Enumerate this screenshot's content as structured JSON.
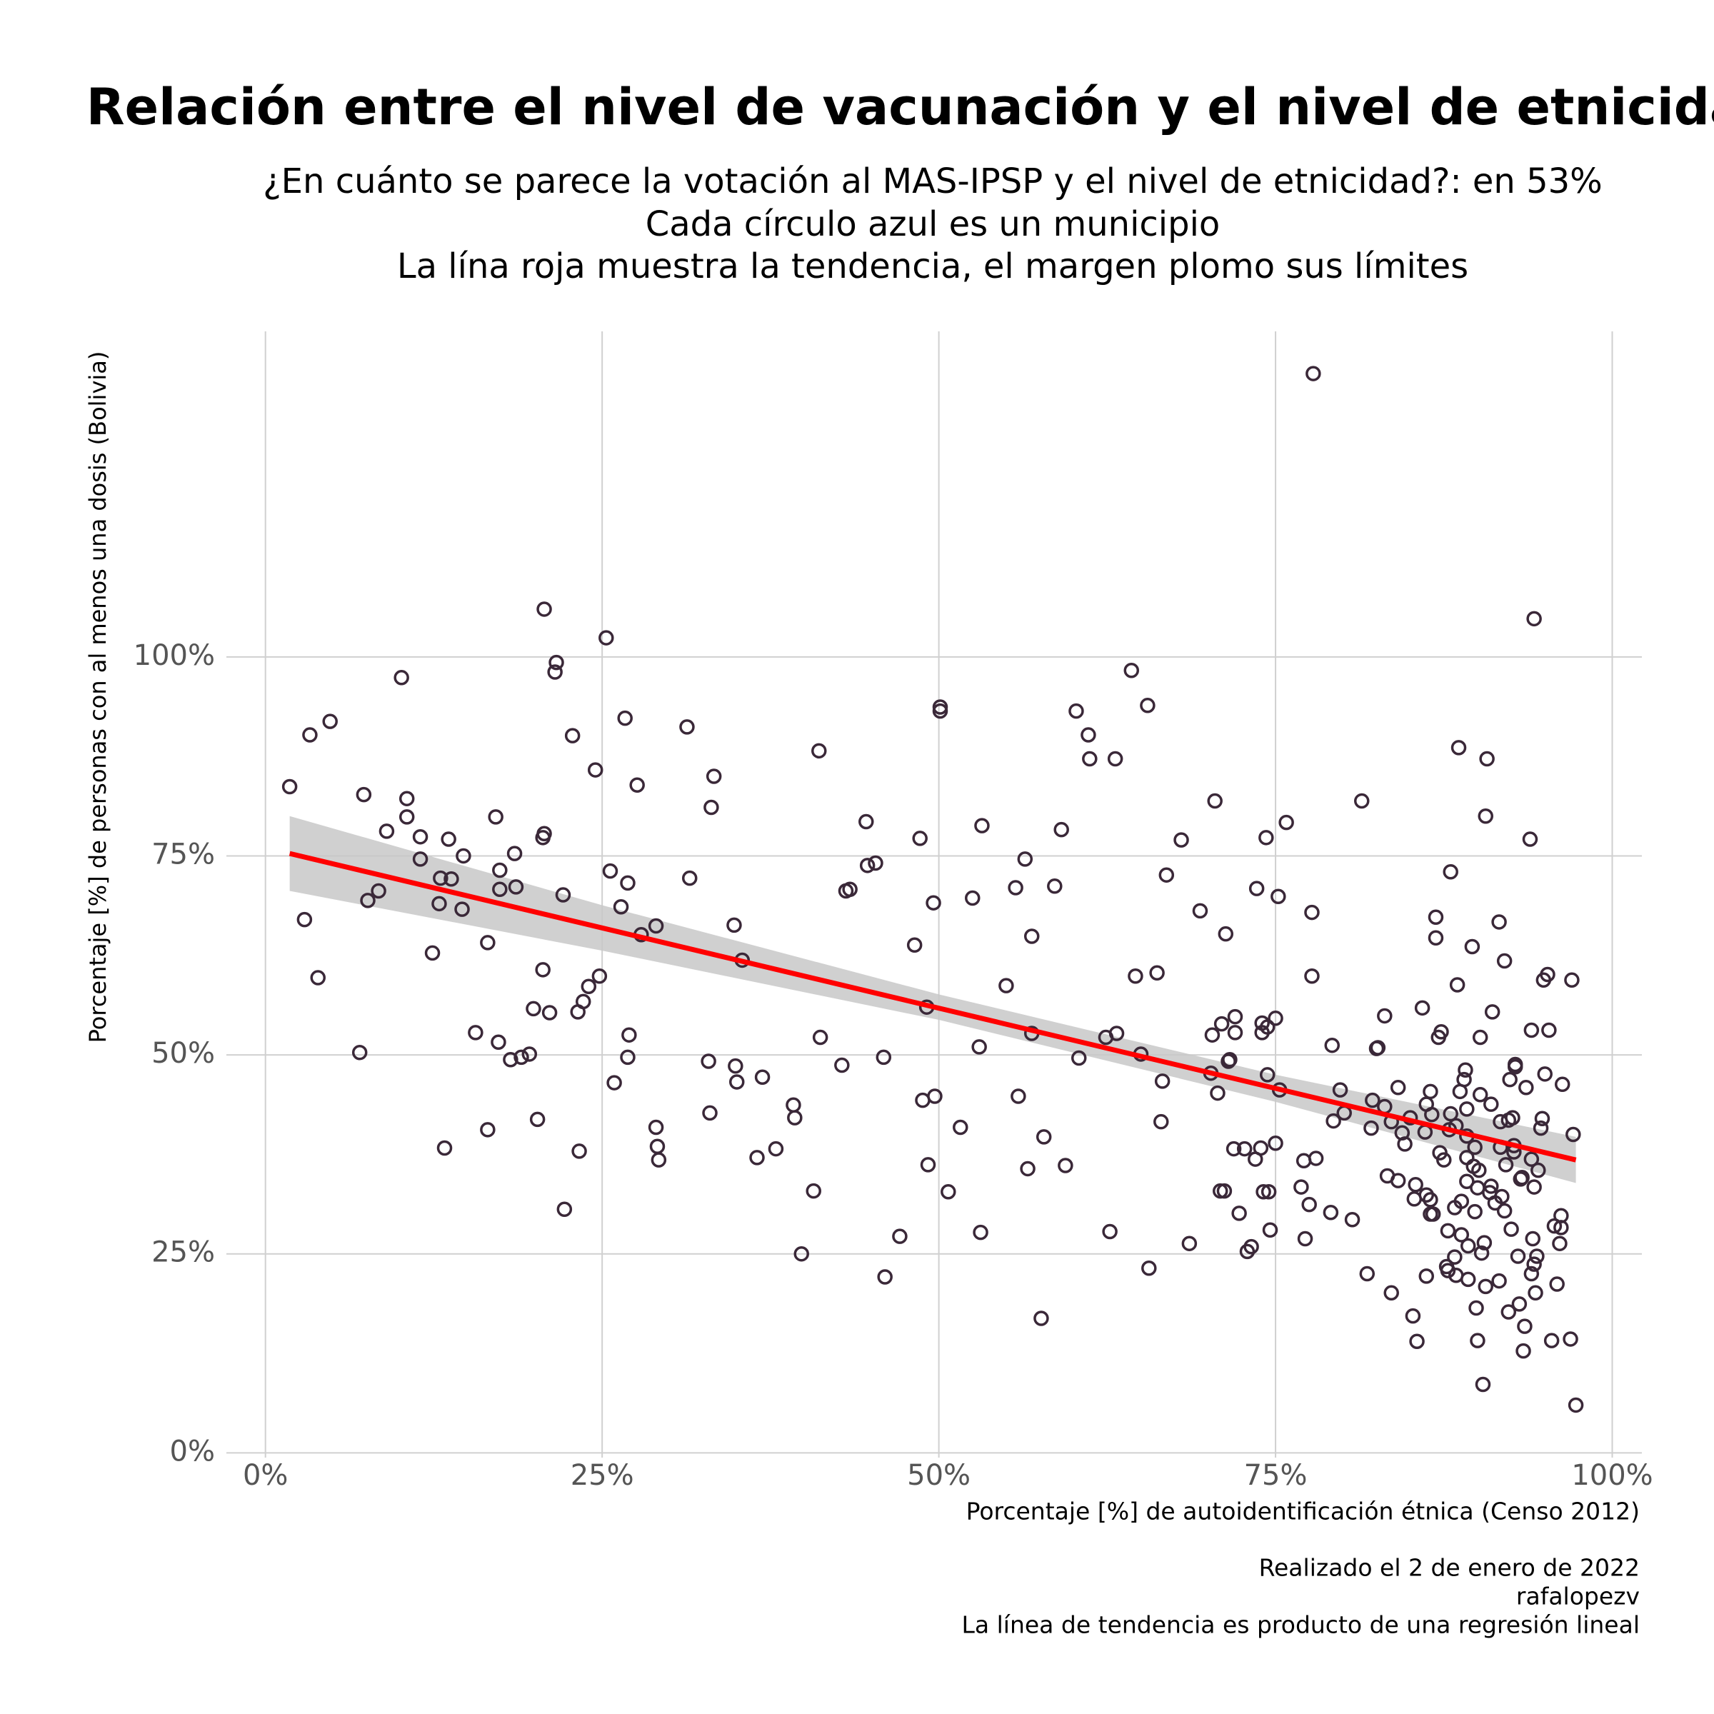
{
  "chart_data": {
    "type": "scatter",
    "title": "Relación entre el nivel de vacunación y el nivel de etnicidad",
    "subtitle": [
      "¿En cuánto se parece la votación al MAS-IPSP y el nivel de etnicidad?: en 53%",
      "Cada círculo azul es un municipio",
      "La lína roja muestra la tendencia, el margen plomo sus límites"
    ],
    "x_label": "Porcentaje [%] de autoidentificación étnica (Censo 2012)",
    "y_label": "Porcentaje [%] de personas con al menos una dosis (Bolivia)",
    "caption": [
      "Realizado el 2 de enero de 2022",
      "rafalopezv",
      "La línea de tendencia es producto de una regresión lineal"
    ],
    "point_color": "#3a2838",
    "x": [
      1.8,
      2.9,
      3.3,
      3.9,
      4.8,
      7,
      7.3,
      7.6,
      8.4,
      9,
      10.1,
      10.5,
      10.5,
      11.5,
      11.5,
      12.4,
      12.9,
      13,
      13.3,
      13.6,
      13.8,
      14.6,
      14.7,
      15.6,
      16.5,
      16.5,
      17.1,
      17.3,
      17.4,
      17.4,
      18.2,
      18.5,
      18.6,
      19,
      19.6,
      19.9,
      20.2,
      20.6,
      20.7,
      20.6,
      20.7,
      21.1,
      21.5,
      21.6,
      22.1,
      22.2,
      22.8,
      23.2,
      23.3,
      23.6,
      24,
      24.5,
      24.8,
      25.3,
      25.6,
      25.9,
      26.4,
      26.7,
      26.9,
      26.9,
      27,
      27.6,
      27.9,
      29,
      29,
      29.1,
      29.2,
      31.3,
      31.5,
      32.9,
      33,
      33.1,
      33.3,
      34.8,
      34.9,
      35,
      35.4,
      36.5,
      36.9,
      37.9,
      39.2,
      39.3,
      39.8,
      40.7,
      41.1,
      41.2,
      42.8,
      43.1,
      43.4,
      44.6,
      44.7,
      45.3,
      45.9,
      46,
      47.1,
      48.2,
      48.6,
      48.8,
      49.1,
      49.2,
      49.6,
      49.7,
      50.1,
      50.1,
      50.7,
      51.6,
      52.5,
      53,
      53.2,
      53.1,
      55,
      55.7,
      55.9,
      56.4,
      56.6,
      56.9,
      56.9,
      57.6,
      57.8,
      58.6,
      59.1,
      59.4,
      60.2,
      60.4,
      61.1,
      61.2,
      62.4,
      62.7,
      63.1,
      63.2,
      64.3,
      64.6,
      65,
      65.5,
      65.6,
      66.2,
      66.5,
      66.6,
      66.9,
      68,
      68.6,
      69.4,
      70.2,
      70.3,
      70.5,
      70.7,
      70.9,
      71,
      71.3,
      71.2,
      71.5,
      71.6,
      71.9,
      72,
      72,
      72.3,
      72.7,
      72.9,
      73.2,
      73.5,
      73.6,
      73.9,
      74,
      74,
      74.1,
      74.3,
      74.4,
      74.4,
      74.5,
      74.6,
      75,
      75,
      75.2,
      75.3,
      75.8,
      76.9,
      77.1,
      77.2,
      77.5,
      77.7,
      77.7,
      78,
      77.8,
      79.1,
      79.2,
      79.3,
      79.8,
      80.1,
      80.7,
      81.4,
      81.8,
      82.1,
      82.2,
      82.5,
      82.6,
      83.1,
      83.1,
      83.3,
      83.6,
      83.6,
      84.1,
      84.1,
      84.4,
      84.6,
      85,
      85.2,
      85.3,
      85.4,
      85.5,
      85.9,
      86.1,
      86.2,
      86.2,
      86.2,
      86.5,
      86.5,
      86.5,
      86.6,
      86.7,
      86.9,
      86.9,
      87.1,
      87.2,
      87.3,
      87.5,
      87.7,
      87.8,
      87.8,
      87.9,
      88,
      88,
      88.3,
      88.3,
      88.4,
      88.4,
      88.5,
      88.6,
      88.7,
      88.8,
      88.8,
      89,
      89.1,
      89.2,
      89.2,
      89.2,
      89.2,
      89.3,
      89.3,
      89.6,
      89.7,
      89.8,
      89.8,
      89.9,
      90,
      90,
      90.1,
      90.2,
      90.2,
      90.3,
      90.4,
      90.5,
      90.6,
      90.6,
      90.7,
      90.9,
      91,
      91,
      91.1,
      91.3,
      91.6,
      91.6,
      91.7,
      91.7,
      91.8,
      92,
      92,
      92.1,
      92.3,
      92.3,
      92.4,
      92.5,
      92.6,
      92.7,
      92.7,
      92.8,
      92.8,
      93,
      93.1,
      93.2,
      93.3,
      93.4,
      93.5,
      93.6,
      93.9,
      94,
      94,
      94,
      94.1,
      94.2,
      94.2,
      94.2,
      94.3,
      94.4,
      94.5,
      94.7,
      94.8,
      94.9,
      95,
      95.2,
      95.3,
      95.5,
      95.7,
      95.9,
      96.1,
      96.2,
      96.2,
      96.3,
      96.9,
      97,
      97.1,
      97.3
    ],
    "values": [
      83.7,
      67,
      90.2,
      59.7,
      91.9,
      50.3,
      82.7,
      69.4,
      70.6,
      78.1,
      97.4,
      82.2,
      79.9,
      77.4,
      74.6,
      62.8,
      69,
      72.2,
      38.3,
      77.1,
      72.1,
      68.3,
      75,
      52.8,
      64.1,
      40.6,
      79.9,
      51.6,
      73.2,
      70.8,
      49.4,
      75.3,
      71.1,
      49.7,
      50.1,
      55.8,
      41.9,
      77.3,
      77.8,
      60.7,
      106,
      55.3,
      98.1,
      99.3,
      70.1,
      30.6,
      90.1,
      55.4,
      37.9,
      56.7,
      58.6,
      85.8,
      59.9,
      102.4,
      73.1,
      46.5,
      68.6,
      92.3,
      71.6,
      49.7,
      52.5,
      83.9,
      65.1,
      66.2,
      40.9,
      38.5,
      36.8,
      91.2,
      72.2,
      49.2,
      42.7,
      81.1,
      85,
      66.3,
      48.6,
      46.6,
      61.9,
      37.1,
      47.2,
      38.2,
      43.7,
      42.1,
      25,
      32.9,
      88.2,
      52.2,
      48.7,
      70.6,
      70.8,
      79.3,
      73.8,
      74.1,
      49.7,
      22.1,
      27.2,
      63.8,
      77.2,
      44.3,
      56,
      36.2,
      69.1,
      44.8,
      93.2,
      93.7,
      32.8,
      40.9,
      69.7,
      51,
      78.8,
      27.7,
      58.7,
      71,
      44.8,
      74.6,
      35.7,
      64.9,
      52.7,
      16.9,
      39.7,
      71.2,
      78.3,
      36.1,
      93.2,
      49.6,
      90.2,
      87.2,
      52.2,
      27.8,
      87.2,
      52.7,
      98.3,
      59.9,
      50.1,
      93.9,
      23.2,
      60.3,
      41.6,
      46.7,
      72.6,
      77,
      26.3,
      68.1,
      47.7,
      52.5,
      81.9,
      45.2,
      32.9,
      53.9,
      65.2,
      32.9,
      49.2,
      49.4,
      38.2,
      52.8,
      54.8,
      30.1,
      38.2,
      25.3,
      25.9,
      36.9,
      70.9,
      38.3,
      52.8,
      54,
      32.8,
      77.3,
      53.5,
      47.5,
      32.8,
      28,
      54.6,
      38.9,
      69.9,
      45.6,
      79.2,
      33.4,
      36.7,
      26.9,
      31.2,
      67.9,
      59.9,
      37,
      135.6,
      30.2,
      51.2,
      41.7,
      45.6,
      42.7,
      29.3,
      81.9,
      22.5,
      40.8,
      44.3,
      50.8,
      50.9,
      54.9,
      43.5,
      34.8,
      41.6,
      20.1,
      45.9,
      34.2,
      40.2,
      38.8,
      42.1,
      17.2,
      31.9,
      33.7,
      14,
      55.9,
      40.3,
      43.8,
      32.4,
      22.2,
      45.4,
      31.8,
      30,
      42.5,
      30,
      64.7,
      67.3,
      52.2,
      37.7,
      52.9,
      36.8,
      23.4,
      27.9,
      22.9,
      40.6,
      42.6,
      73,
      24.6,
      30.8,
      22.3,
      41.1,
      58.8,
      88.6,
      45.4,
      31.6,
      27.4,
      46.9,
      48.1,
      34.1,
      37.1,
      43.2,
      39.8,
      26,
      21.8,
      63.6,
      36,
      30.3,
      38.4,
      18.2,
      33.3,
      14.1,
      35.5,
      45,
      52.2,
      25.1,
      8.6,
      26.4,
      20.9,
      80,
      87.2,
      32.7,
      33.5,
      43.8,
      55.4,
      31.4,
      21.6,
      66.7,
      41.6,
      38.4,
      32.2,
      30.4,
      61.8,
      36.2,
      41.8,
      17.7,
      46.9,
      28.1,
      42.1,
      37.8,
      38.6,
      48.8,
      48.5,
      24.7,
      18.7,
      34.4,
      34.6,
      12.8,
      15.9,
      45.9,
      77.1,
      53.1,
      36.9,
      22.5,
      26.9,
      104.8,
      23.7,
      33.4,
      20.1,
      24.7,
      35.5,
      40.8,
      42,
      59.4,
      47.6,
      60.1,
      53.1,
      14.1,
      28.5,
      21.2,
      26.3,
      28.3,
      29.8,
      46.3,
      14.3,
      59.4,
      40,
      6
    ],
    "trend": {
      "color": "#ff0000",
      "x": [
        1.8,
        97.3
      ],
      "y": [
        75.3,
        36.8
      ]
    },
    "band": {
      "color": "#c8c8c8",
      "x": [
        1.8,
        25,
        50,
        75,
        97.3
      ],
      "lower": [
        70.6,
        63.1,
        54.4,
        44.1,
        33.9
      ],
      "upper": [
        80.0,
        68.8,
        57.6,
        47.5,
        39.7
      ]
    },
    "xlim": [
      -2.9,
      102.2
    ],
    "ylim": [
      -0.6,
      140.9
    ],
    "xticks": [
      {
        "value": 0,
        "label": "0%"
      },
      {
        "value": 25,
        "label": "25%"
      },
      {
        "value": 50,
        "label": "50%"
      },
      {
        "value": 75,
        "label": "75%"
      },
      {
        "value": 100,
        "label": "100%"
      }
    ],
    "yticks": [
      {
        "value": 0,
        "label": "0%"
      },
      {
        "value": 25,
        "label": "25%"
      },
      {
        "value": 50,
        "label": "50%"
      },
      {
        "value": 75,
        "label": "75%"
      },
      {
        "value": 100,
        "label": "100%"
      }
    ],
    "grid": true
  }
}
